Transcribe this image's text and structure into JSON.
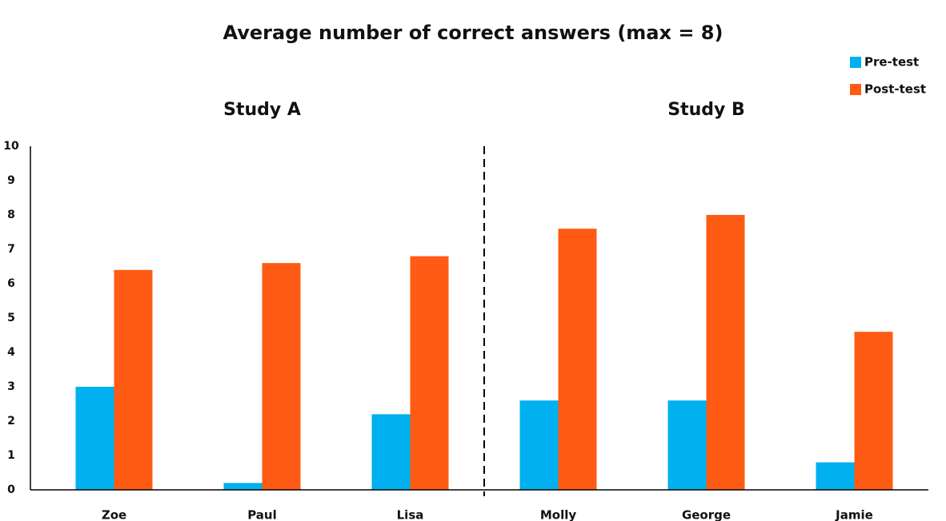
{
  "chart_data": {
    "type": "bar",
    "title": "Average number of correct answers (max = 8)",
    "annotations": [
      "Study A",
      "Study B"
    ],
    "categories": [
      "Zoe",
      "Paul",
      "Lisa",
      "Molly",
      "George",
      "Jamie"
    ],
    "series": [
      {
        "name": "Pre-test",
        "color": "#00b0f0",
        "values": [
          3,
          0.2,
          2.2,
          2.6,
          2.6,
          0.8
        ]
      },
      {
        "name": "Post-test",
        "color": "#ff5b14",
        "values": [
          6.4,
          6.6,
          6.8,
          7.6,
          8,
          4.6
        ]
      }
    ],
    "ylim": [
      0,
      10
    ],
    "yticks": [
      0,
      1,
      2,
      3,
      4,
      5,
      6,
      7,
      8,
      9,
      10
    ],
    "grid": false,
    "legend": "top-right"
  }
}
